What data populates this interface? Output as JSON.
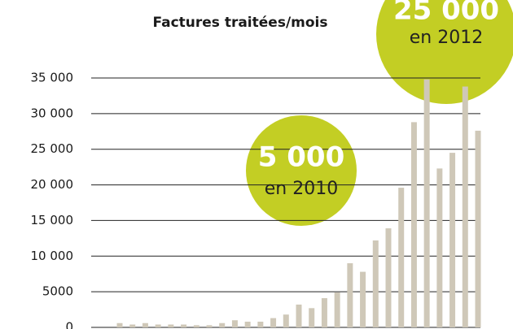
{
  "chart_data": {
    "type": "bar",
    "title": "Factures traitées/mois",
    "categories": [
      null,
      null,
      null,
      null,
      null,
      null,
      null,
      null,
      null,
      null,
      null,
      null,
      null,
      null,
      null,
      null,
      null,
      null,
      null,
      null,
      null,
      null,
      null,
      null,
      null,
      null,
      null,
      null,
      null
    ],
    "values": [
      600,
      400,
      600,
      400,
      400,
      400,
      300,
      300,
      600,
      1000,
      800,
      800,
      1300,
      1800,
      3200,
      2700,
      4100,
      4900,
      9000,
      7800,
      12200,
      13900,
      19600,
      28800,
      34800,
      22300,
      24500,
      33800,
      27600
    ],
    "color": "#cfc8b8",
    "ylim": [
      0,
      35000
    ],
    "yticks": [
      0,
      5000,
      {
        "value": 10000,
        "label": "10 000"
      },
      {
        "value": 15000,
        "label": "15 000"
      },
      {
        "value": 20000,
        "label": "20 000"
      },
      {
        "value": 25000,
        "label": "25 000"
      },
      {
        "value": 30000,
        "label": "30 000"
      },
      {
        "value": 35000,
        "label": "35 000"
      }
    ],
    "grid": true,
    "annotations": [
      {
        "value": "5 000",
        "text": "en 2010"
      },
      {
        "value": "25 000",
        "text": "en 2012"
      }
    ]
  }
}
